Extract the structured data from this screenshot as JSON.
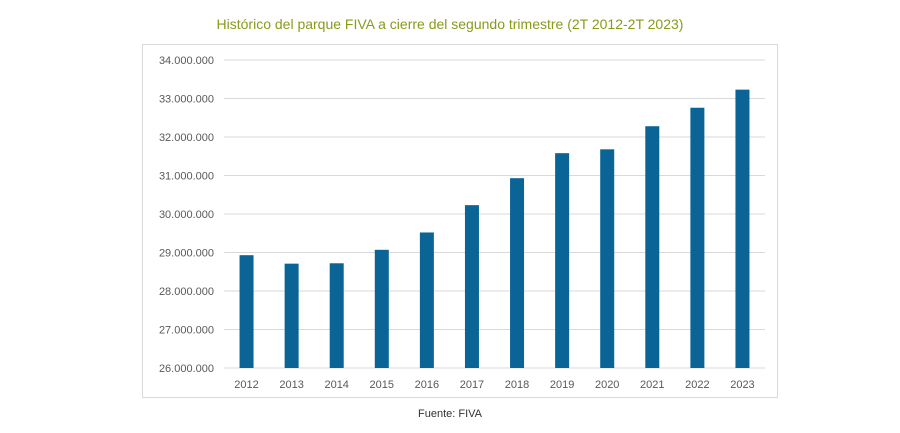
{
  "chart_data": {
    "type": "bar",
    "title": "Histórico del parque FIVA a cierre del segundo trimestre (2T 2012-2T 2023)",
    "categories": [
      "2012",
      "2013",
      "2014",
      "2015",
      "2016",
      "2017",
      "2018",
      "2019",
      "2020",
      "2021",
      "2022",
      "2023"
    ],
    "values": [
      28930000,
      28710000,
      28720000,
      29070000,
      29520000,
      30230000,
      30930000,
      31580000,
      31680000,
      32280000,
      32760000,
      33230000
    ],
    "ylim": [
      26000000,
      34000000
    ],
    "yticks": [
      26000000,
      27000000,
      28000000,
      29000000,
      30000000,
      31000000,
      32000000,
      33000000,
      34000000
    ],
    "ytick_labels": [
      "26.000.000",
      "27.000.000",
      "28.000.000",
      "29.000.000",
      "30.000.000",
      "31.000.000",
      "32.000.000",
      "33.000.000",
      "34.000.000"
    ],
    "xlabel": "",
    "ylabel": "",
    "grid": true,
    "legend": "none",
    "bar_color": "#0a6496",
    "grid_color": "#d9d9d9"
  },
  "source": "Fuente: FIVA"
}
